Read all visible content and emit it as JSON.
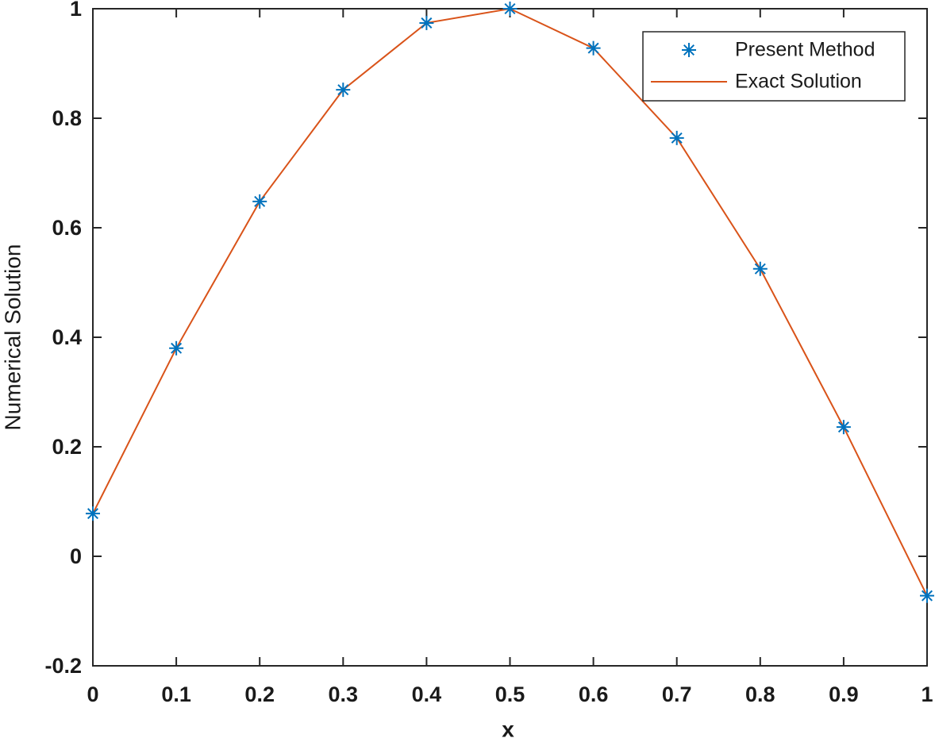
{
  "chart_data": {
    "type": "line",
    "xlabel": "x",
    "ylabel": "Numerical Solution",
    "x": [
      0,
      0.1,
      0.2,
      0.3,
      0.4,
      0.5,
      0.6,
      0.7,
      0.8,
      0.9,
      1
    ],
    "series": [
      {
        "name": "Present Method",
        "color": "#0072bd",
        "mode": "markers",
        "values": [
          0.078,
          0.38,
          0.648,
          0.852,
          0.974,
          1.0,
          0.928,
          0.764,
          0.525,
          0.236,
          -0.072
        ]
      },
      {
        "name": "Exact Solution",
        "color": "#d95319",
        "mode": "lines",
        "values": [
          0.078,
          0.38,
          0.648,
          0.852,
          0.974,
          1.0,
          0.928,
          0.764,
          0.525,
          0.236,
          -0.072
        ]
      }
    ],
    "xlim": [
      0,
      1
    ],
    "xticks": [
      0,
      0.1,
      0.2,
      0.3,
      0.4,
      0.5,
      0.6,
      0.7,
      0.8,
      0.9,
      1
    ],
    "ylim": [
      -0.2,
      1
    ],
    "yticks": [
      -0.2,
      0,
      0.2,
      0.4,
      0.6,
      0.8,
      1
    ],
    "grid": false,
    "legend": "upper right"
  }
}
